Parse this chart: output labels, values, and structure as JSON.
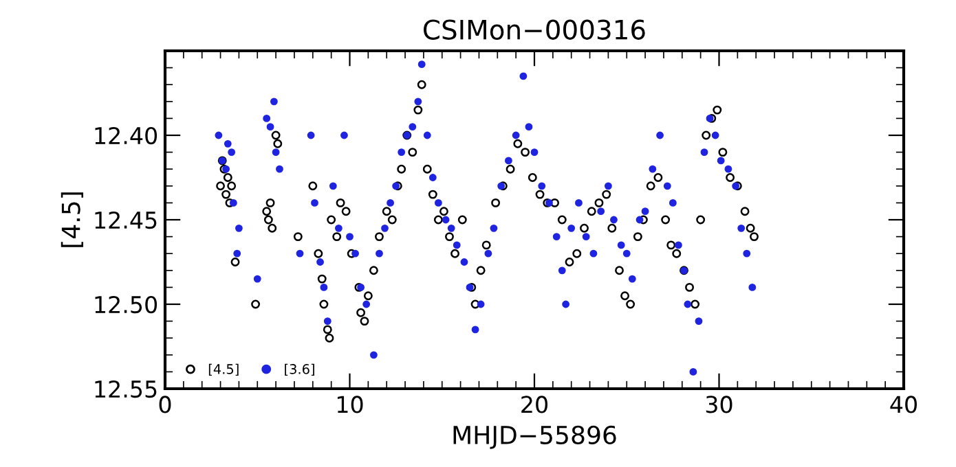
{
  "chart_data": {
    "type": "scatter",
    "title": "CSIMon−000316",
    "xlabel": "MHJD−55896",
    "ylabel": "[4.5]",
    "xlim": [
      0,
      40
    ],
    "xticks": [
      0,
      10,
      20,
      30,
      40
    ],
    "ylim": [
      12.55,
      12.35
    ],
    "yticks": [
      {
        "value": 12.4,
        "label": "12.40"
      },
      12.45,
      {
        "value": 12.5,
        "label": "12.50"
      },
      12.55
    ],
    "grid": false,
    "legend": "bottom left",
    "series": [
      {
        "name": "[4.5]",
        "color": "#000000",
        "marker": "open_circle",
        "x": [
          3.0,
          3.1,
          3.2,
          3.3,
          3.4,
          3.5,
          3.6,
          3.8,
          4.9,
          5.5,
          5.6,
          5.7,
          5.8,
          6.0,
          6.1,
          7.2,
          8.0,
          8.3,
          8.5,
          8.6,
          8.8,
          8.9,
          9.0,
          9.3,
          9.5,
          9.8,
          10.1,
          10.5,
          10.6,
          10.8,
          11.0,
          11.3,
          11.6,
          12.0,
          12.3,
          12.6,
          12.8,
          13.1,
          13.4,
          13.7,
          13.9,
          14.2,
          14.5,
          14.8,
          15.1,
          15.4,
          15.7,
          16.1,
          16.6,
          16.8,
          17.1,
          17.4,
          17.9,
          18.3,
          18.7,
          19.1,
          19.5,
          19.9,
          20.3,
          20.7,
          21.1,
          21.5,
          21.9,
          22.3,
          22.7,
          23.1,
          23.5,
          23.9,
          24.2,
          24.6,
          24.9,
          25.2,
          25.6,
          25.9,
          26.3,
          26.7,
          27.1,
          27.4,
          27.7,
          28.1,
          28.4,
          28.7,
          29.0,
          29.3,
          29.6,
          29.9,
          30.2,
          30.6,
          31.0,
          31.4,
          31.7,
          31.9
        ],
        "values": [
          12.43,
          12.415,
          12.42,
          12.435,
          12.425,
          12.44,
          12.43,
          12.475,
          12.5,
          12.445,
          12.45,
          12.44,
          12.455,
          12.4,
          12.405,
          12.46,
          12.43,
          12.47,
          12.485,
          12.5,
          12.515,
          12.52,
          12.45,
          12.46,
          12.44,
          12.445,
          12.47,
          12.49,
          12.505,
          12.51,
          12.495,
          12.48,
          12.46,
          12.445,
          12.45,
          12.43,
          12.42,
          12.4,
          12.41,
          12.385,
          12.37,
          12.42,
          12.435,
          12.45,
          12.445,
          12.46,
          12.47,
          12.45,
          12.49,
          12.5,
          12.48,
          12.465,
          12.44,
          12.43,
          12.42,
          12.405,
          12.41,
          12.425,
          12.435,
          12.44,
          12.44,
          12.45,
          12.475,
          12.47,
          12.455,
          12.445,
          12.44,
          12.435,
          12.455,
          12.48,
          12.495,
          12.5,
          12.46,
          12.45,
          12.43,
          12.425,
          12.45,
          12.465,
          12.47,
          12.48,
          12.49,
          12.5,
          12.45,
          12.4,
          12.39,
          12.385,
          12.41,
          12.425,
          12.43,
          12.445,
          12.455,
          12.46
        ]
      },
      {
        "name": "[3.6]",
        "color": "#1f24e0",
        "marker": "circle",
        "x": [
          2.9,
          3.1,
          3.3,
          3.4,
          3.6,
          3.7,
          3.9,
          4.0,
          5.0,
          5.5,
          5.7,
          5.9,
          6.0,
          6.2,
          7.3,
          7.9,
          8.1,
          8.4,
          8.6,
          8.8,
          9.1,
          9.4,
          9.7,
          10.0,
          10.3,
          10.6,
          10.9,
          11.3,
          11.6,
          11.9,
          12.2,
          12.5,
          12.8,
          13.1,
          13.4,
          13.7,
          13.9,
          14.2,
          14.5,
          14.8,
          15.2,
          15.5,
          15.8,
          16.2,
          16.5,
          16.8,
          17.1,
          17.5,
          17.8,
          18.2,
          18.6,
          19.0,
          19.4,
          19.7,
          20.0,
          20.4,
          20.8,
          21.2,
          21.5,
          21.7,
          22.0,
          22.4,
          22.8,
          23.2,
          23.6,
          24.0,
          24.3,
          24.7,
          25.0,
          25.3,
          25.7,
          26.0,
          26.4,
          26.8,
          27.2,
          27.5,
          27.8,
          28.1,
          28.3,
          28.6,
          28.9,
          29.2,
          29.5,
          29.8,
          30.1,
          30.5,
          30.9,
          31.2,
          31.5,
          31.8
        ],
        "values": [
          12.4,
          12.415,
          12.42,
          12.405,
          12.41,
          12.44,
          12.47,
          12.455,
          12.485,
          12.39,
          12.395,
          12.38,
          12.41,
          12.42,
          12.47,
          12.4,
          12.44,
          12.475,
          12.49,
          12.51,
          12.43,
          12.455,
          12.4,
          12.46,
          12.47,
          12.49,
          12.5,
          12.53,
          12.47,
          12.455,
          12.44,
          12.43,
          12.41,
          12.4,
          12.395,
          12.38,
          12.358,
          12.4,
          12.425,
          12.44,
          12.45,
          12.455,
          12.465,
          12.475,
          12.49,
          12.515,
          12.5,
          12.47,
          12.455,
          12.43,
          12.415,
          12.4,
          12.365,
          12.395,
          12.41,
          12.43,
          12.44,
          12.46,
          12.48,
          12.5,
          12.455,
          12.44,
          12.46,
          12.47,
          12.445,
          12.43,
          12.45,
          12.465,
          12.47,
          12.485,
          12.45,
          12.445,
          12.42,
          12.4,
          12.43,
          12.44,
          12.465,
          12.48,
          12.5,
          12.54,
          12.51,
          12.41,
          12.39,
          12.4,
          12.415,
          12.42,
          12.43,
          12.455,
          12.47,
          12.49
        ]
      }
    ]
  }
}
